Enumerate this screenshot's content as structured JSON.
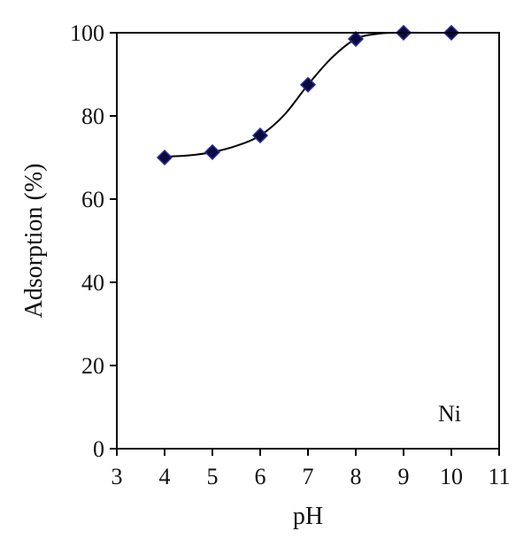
{
  "chart_data": {
    "type": "scatter",
    "title": "",
    "xlabel": "pH",
    "ylabel": "Adsorption (%)",
    "xlim": [
      3,
      11
    ],
    "ylim": [
      0,
      100
    ],
    "xticks": [
      "3",
      "4",
      "5",
      "6",
      "7",
      "8",
      "9",
      "10",
      "11"
    ],
    "yticks": [
      "0",
      "20",
      "40",
      "60",
      "80",
      "100"
    ],
    "grid": false,
    "legend": "none",
    "annotation": "Ni",
    "marker": "diamond",
    "marker_color": "#0a0a3c",
    "line_color": "#000000",
    "series": [
      {
        "x": [
          4,
          5,
          6,
          7,
          8,
          9,
          10
        ],
        "y": [
          70,
          71.3,
          75.3,
          87.5,
          98.5,
          100,
          100
        ]
      }
    ],
    "fit_curve": {
      "x": [
        4,
        4.5,
        5,
        5.5,
        6,
        6.5,
        7,
        7.5,
        8,
        8.5,
        9,
        9.5,
        10
      ],
      "y": [
        70.2,
        70.5,
        71.3,
        72.8,
        75.3,
        80.2,
        87.5,
        94.0,
        98.5,
        99.8,
        100,
        100,
        100
      ]
    }
  }
}
